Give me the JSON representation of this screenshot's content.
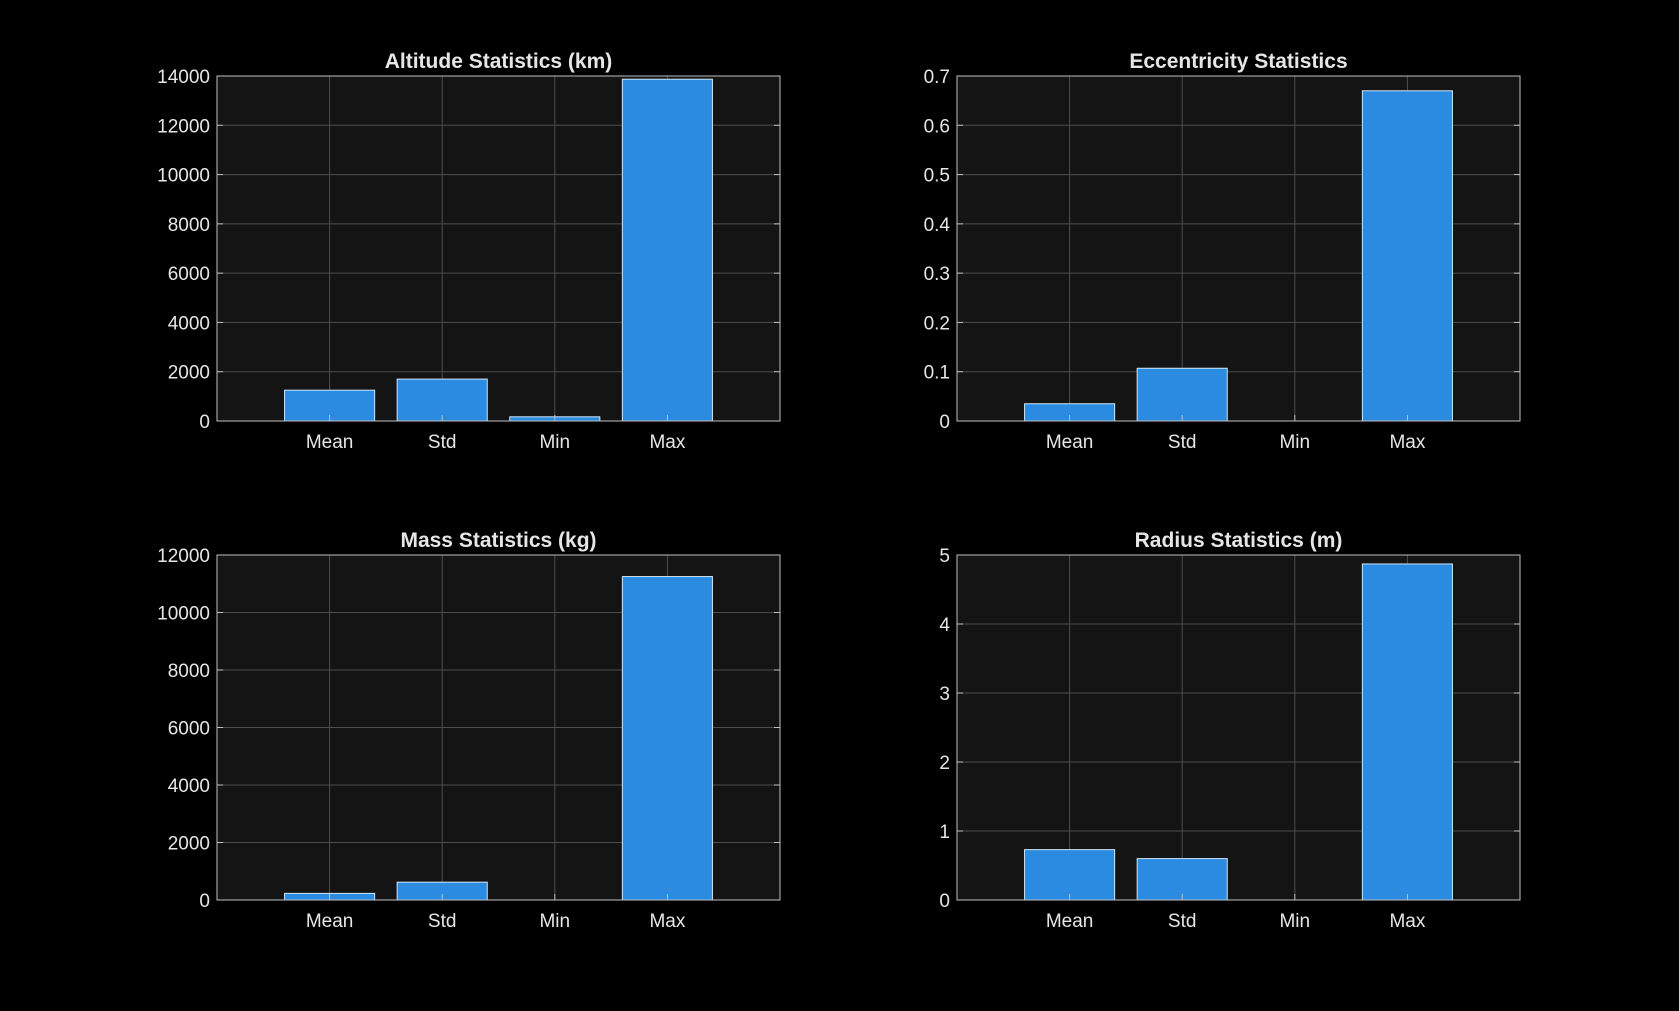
{
  "colors": {
    "figure_background": "#000000",
    "axes_background": "#141414",
    "bar_fill": "#2a8be0",
    "bar_edge": "#cfe6fb",
    "grid": "#4d4d4d",
    "axis_line": "#bfbfbf",
    "text": "#e6e6e6"
  },
  "chart_data": [
    {
      "type": "bar",
      "title": "Altitude Statistics (km)",
      "categories": [
        "Mean",
        "Std",
        "Min",
        "Max"
      ],
      "values": [
        1250,
        1700,
        170,
        13870
      ],
      "xlabel": "",
      "ylabel": "",
      "ylim": [
        0,
        14000
      ],
      "yticks": [
        "0",
        "2000",
        "4000",
        "6000",
        "8000",
        "10000",
        "12000",
        "14000"
      ],
      "grid": true
    },
    {
      "type": "bar",
      "title": "Eccentricity Statistics",
      "categories": [
        "Mean",
        "Std",
        "Min",
        "Max"
      ],
      "values": [
        0.035,
        0.107,
        0,
        0.67
      ],
      "xlabel": "",
      "ylabel": "",
      "ylim": [
        0,
        0.7
      ],
      "yticks": [
        "0",
        "0.1",
        "0.2",
        "0.3",
        "0.4",
        "0.5",
        "0.6",
        "0.7"
      ],
      "grid": true
    },
    {
      "type": "bar",
      "title": "Mass Statistics (kg)",
      "categories": [
        "Mean",
        "Std",
        "Min",
        "Max"
      ],
      "values": [
        230,
        620,
        0,
        11250
      ],
      "xlabel": "",
      "ylabel": "",
      "ylim": [
        0,
        12000
      ],
      "yticks": [
        "0",
        "2000",
        "4000",
        "6000",
        "8000",
        "10000",
        "12000"
      ],
      "grid": true
    },
    {
      "type": "bar",
      "title": "Radius Statistics (m)",
      "categories": [
        "Mean",
        "Std",
        "Min",
        "Max"
      ],
      "values": [
        0.73,
        0.6,
        0,
        4.87
      ],
      "xlabel": "",
      "ylabel": "",
      "ylim": [
        0,
        5
      ],
      "yticks": [
        "0",
        "1",
        "2",
        "3",
        "4",
        "5"
      ],
      "grid": true
    }
  ]
}
